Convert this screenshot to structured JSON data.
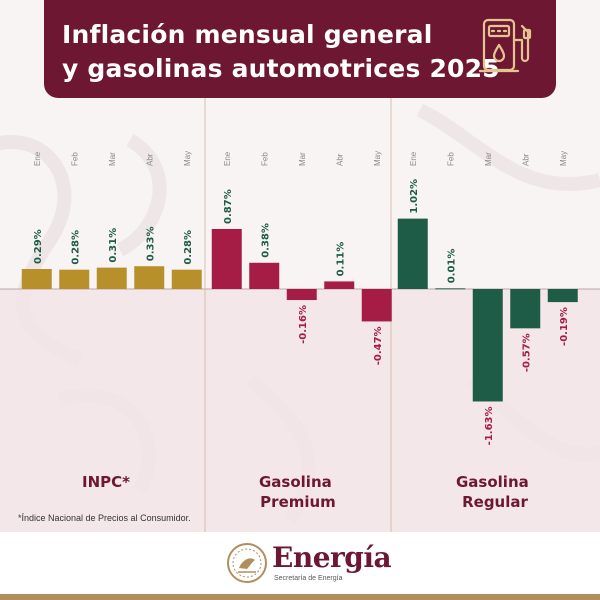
{
  "header": {
    "title_line1": "Inflación mensual general",
    "title_line2": "y gasolinas automotrices 2025"
  },
  "colors": {
    "header_bg": "#6e1733",
    "gold": "#b8902b",
    "crimson": "#a51d45",
    "green": "#1f5c47",
    "negative_region": "#f2e4e6",
    "grid": "#d9bfa8"
  },
  "icons": {
    "header_icon": "fuel-pump-icon"
  },
  "chart_data": {
    "type": "bar",
    "ylim": [
      -1.75,
      1.35
    ],
    "value_suffix": "%",
    "panels": [
      {
        "label": "INPC*",
        "color": "#b8902b",
        "categories": [
          "Ene",
          "Feb",
          "Mar",
          "Abr",
          "May"
        ],
        "values": [
          0.29,
          0.28,
          0.31,
          0.33,
          0.28
        ],
        "data_labels": [
          "0.29%",
          "0.28%",
          "0.31%",
          "0.33%",
          "0.28%"
        ]
      },
      {
        "label": "Gasolina Premium",
        "color": "#a51d45",
        "categories": [
          "Ene",
          "Feb",
          "Mar",
          "Abr",
          "May"
        ],
        "values": [
          0.87,
          0.38,
          -0.16,
          0.11,
          -0.47
        ],
        "data_labels": [
          "0.87%",
          "0.38%",
          "-0.16%",
          "0.11%",
          "-0.47%"
        ]
      },
      {
        "label": "Gasolina Regular",
        "color": "#1f5c47",
        "categories": [
          "Ene",
          "Feb",
          "Mar",
          "Abr",
          "May"
        ],
        "values": [
          1.02,
          0.01,
          -1.63,
          -0.57,
          -0.19
        ],
        "data_labels": [
          "1.02%",
          "0.01%",
          "-1.63%",
          "-0.57%",
          "-0.19%"
        ]
      }
    ]
  },
  "footnote": "*Índice Nacional de Precios al Consumidor.",
  "footer": {
    "brand": "Energía",
    "subtitle": "Secretaría de Energía"
  }
}
